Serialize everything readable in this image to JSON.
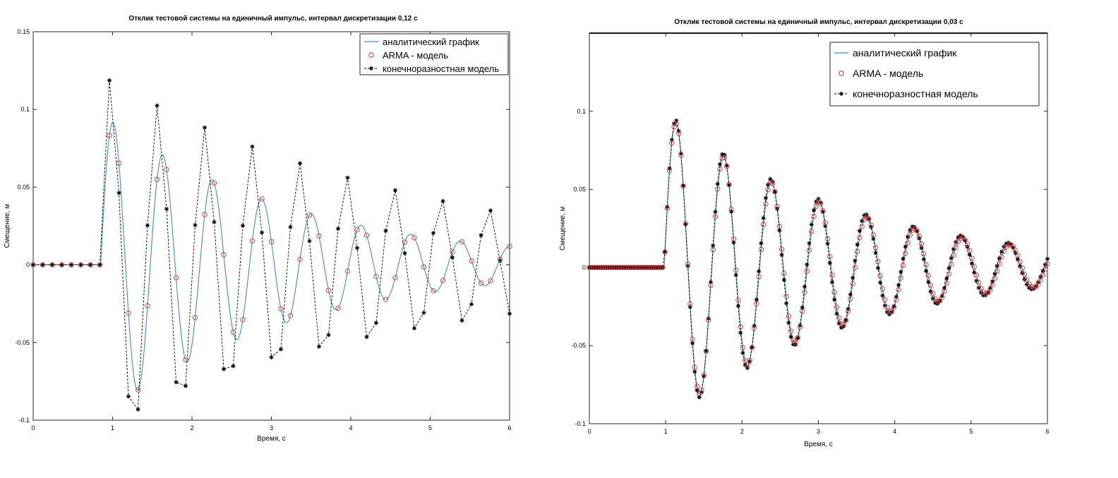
{
  "chart_data": [
    {
      "type": "line",
      "title": "Отклик тестовой системы на единичный импульс,  интервал дискретизации  0,12 с",
      "xlabel": "Время, с",
      "ylabel": "Смещение, м",
      "xlim": [
        0,
        6
      ],
      "ylim": [
        -0.1,
        0.15
      ],
      "xticks": [
        0,
        1,
        2,
        3,
        4,
        5,
        6
      ],
      "xtick_labels": [
        "0",
        "1",
        "2",
        "3",
        "4",
        "5",
        "6"
      ],
      "yticks": [
        -0.1,
        -0.05,
        0,
        0.05,
        0.1,
        0.15
      ],
      "ytick_labels": [
        "-0.1",
        "-0.05",
        "0",
        "0.05",
        "0.1",
        "0.15"
      ],
      "grid": false,
      "legend_position": "top-right",
      "sample_interval": 0.12,
      "series": [
        {
          "name": "аналитический график",
          "style": "solid",
          "color": "#3a8fc4",
          "model": {
            "impulse_time": 0.85,
            "amplitude": 0.0975,
            "decay": 0.41,
            "period": 0.625
          }
        },
        {
          "name": "ARMA - модель",
          "style": "markers",
          "marker": "circle",
          "color": "#e03030",
          "model": {
            "impulse_time": 0.85,
            "amplitude": 0.0975,
            "decay": 0.41,
            "period": 0.625
          }
        },
        {
          "name": "конечноразностная модель",
          "style": "dashed",
          "marker": "asterisk",
          "color": "#000000",
          "model": {
            "impulse_time": 0.85,
            "amplitude": 0.119,
            "decay": 0.25,
            "period": 0.596,
            "first_step": 0.12
          }
        }
      ]
    },
    {
      "type": "line",
      "title": "Отклик тестовой системы на единичный импульс,  интервал дискретизации  0,03 с",
      "xlabel": "Время, с",
      "ylabel": "Смещение, м",
      "xlim": [
        0,
        6
      ],
      "ylim": [
        -0.1,
        0.15
      ],
      "xticks": [
        0,
        1,
        2,
        3,
        4,
        5,
        6
      ],
      "xtick_labels": [
        "0",
        "1",
        "2",
        "3",
        "4",
        "5",
        "6"
      ],
      "yticks": [
        -0.1,
        -0.05,
        0,
        0.05,
        0.1
      ],
      "ytick_labels": [
        "-0.1",
        "-0.05",
        "0",
        "0.05",
        "0.1"
      ],
      "grid": false,
      "legend_position": "top-right",
      "sample_interval": 0.03,
      "series": [
        {
          "name": "аналитический график",
          "style": "solid",
          "color": "#3a8fc4",
          "model": {
            "impulse_time": 0.98,
            "amplitude": 0.0985,
            "decay": 0.42,
            "period": 0.625
          }
        },
        {
          "name": "ARMA - модель",
          "style": "markers",
          "marker": "circle",
          "color": "#e03030",
          "model": {
            "impulse_time": 0.98,
            "amplitude": 0.0985,
            "decay": 0.42,
            "period": 0.625
          }
        },
        {
          "name": "конечноразностная модель",
          "style": "dashed",
          "marker": "asterisk",
          "color": "#000000",
          "model": {
            "impulse_time": 0.98,
            "amplitude": 0.1005,
            "decay": 0.41,
            "period": 0.622
          }
        }
      ]
    }
  ]
}
